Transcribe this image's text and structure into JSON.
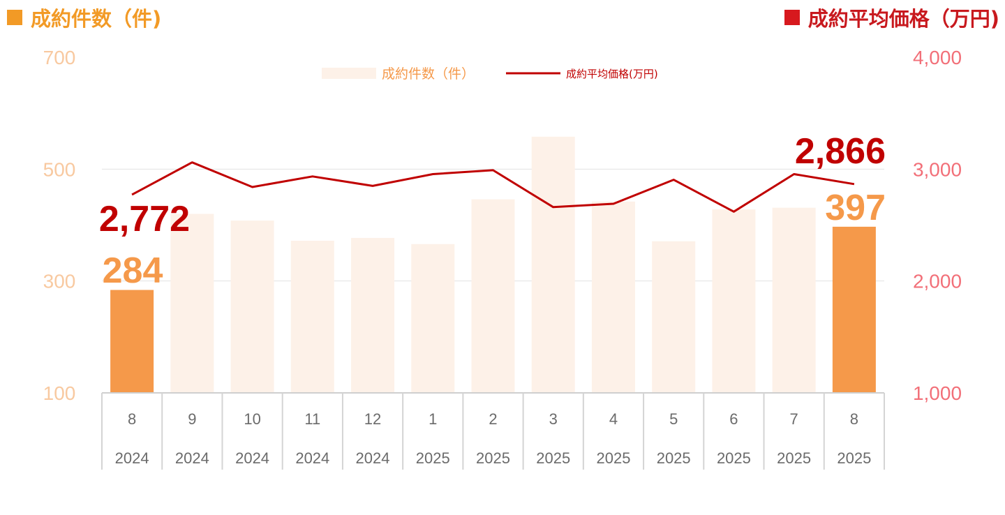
{
  "header": {
    "left_title": "成約件数（件)",
    "right_title": "成約平均価格（万円)"
  },
  "legend": {
    "bars": "成約件数（件）",
    "line": "成約平均価格(万円)"
  },
  "colors": {
    "bar_highlight": "#F5994A",
    "bar_muted": "#FDF1E8",
    "line": "#C00000",
    "left_axis": "#F8C9A0",
    "right_axis": "#F26F78",
    "left_label": "#F5994A",
    "right_label": "#C00000"
  },
  "chart_data": {
    "type": "bar",
    "categories": [
      "8",
      "9",
      "10",
      "11",
      "12",
      "1",
      "2",
      "3",
      "4",
      "5",
      "6",
      "7",
      "8"
    ],
    "years": [
      "2024",
      "2024",
      "2024",
      "2024",
      "2024",
      "2025",
      "2025",
      "2025",
      "2025",
      "2025",
      "2025",
      "2025",
      "2025"
    ],
    "series": [
      {
        "name": "成約件数（件）",
        "axis": "left",
        "type": "bar",
        "values": [
          284,
          420,
          408,
          372,
          377,
          366,
          446,
          558,
          442,
          371,
          428,
          431,
          397
        ],
        "highlight": [
          true,
          false,
          false,
          false,
          false,
          false,
          false,
          false,
          false,
          false,
          false,
          false,
          true
        ]
      },
      {
        "name": "成約平均価格(万円)",
        "axis": "right",
        "type": "line",
        "values": [
          2772,
          3060,
          2840,
          2935,
          2850,
          2955,
          2990,
          2660,
          2690,
          2905,
          2620,
          2955,
          2866
        ]
      }
    ],
    "left_axis": {
      "ylim": [
        100,
        700
      ],
      "ticks": [
        "100",
        "300",
        "500",
        "700"
      ]
    },
    "right_axis": {
      "ylim": [
        1000,
        4000
      ],
      "ticks": [
        "1,000",
        "2,000",
        "3,000",
        "4,000"
      ]
    },
    "annotations": [
      {
        "text": "2,772",
        "series": 1,
        "index": 0
      },
      {
        "text": "284",
        "series": 0,
        "index": 0
      },
      {
        "text": "2,866",
        "series": 1,
        "index": 12
      },
      {
        "text": "397",
        "series": 0,
        "index": 12
      }
    ],
    "grid": true,
    "legend_position": "top-center"
  }
}
